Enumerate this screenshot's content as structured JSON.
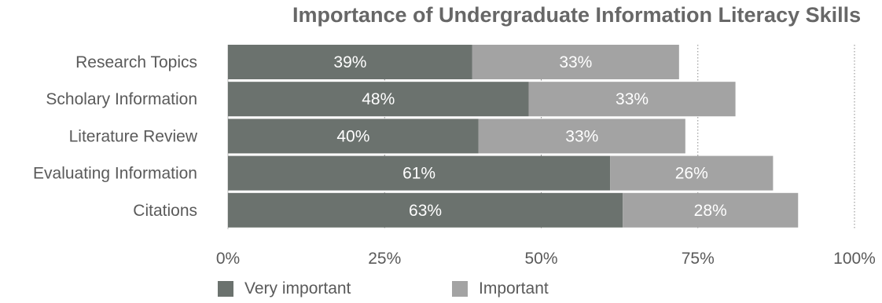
{
  "chart_data": {
    "type": "bar",
    "orientation": "horizontal",
    "stacked": true,
    "title": "Importance of Undergraduate Information Literacy Skills",
    "categories": [
      "Research Topics",
      "Scholary Information",
      "Literature Review",
      "Evaluating Information",
      "Citations"
    ],
    "series": [
      {
        "name": "Very important",
        "values": [
          39,
          48,
          40,
          61,
          63
        ],
        "labels": [
          "39%",
          "48%",
          "40%",
          "61%",
          "63%"
        ],
        "color": "#6b726e"
      },
      {
        "name": "Important",
        "values": [
          33,
          33,
          33,
          26,
          28
        ],
        "labels": [
          "33%",
          "33%",
          "33%",
          "26%",
          "28%"
        ],
        "color": "#a3a3a3"
      }
    ],
    "xlim": [
      0,
      100
    ],
    "xticks": [
      0,
      25,
      50,
      75,
      100
    ],
    "xtick_labels": [
      "0%",
      "25%",
      "50%",
      "75%",
      "100%"
    ],
    "grid": "vertical dotted",
    "legend_position": "bottom-left"
  }
}
